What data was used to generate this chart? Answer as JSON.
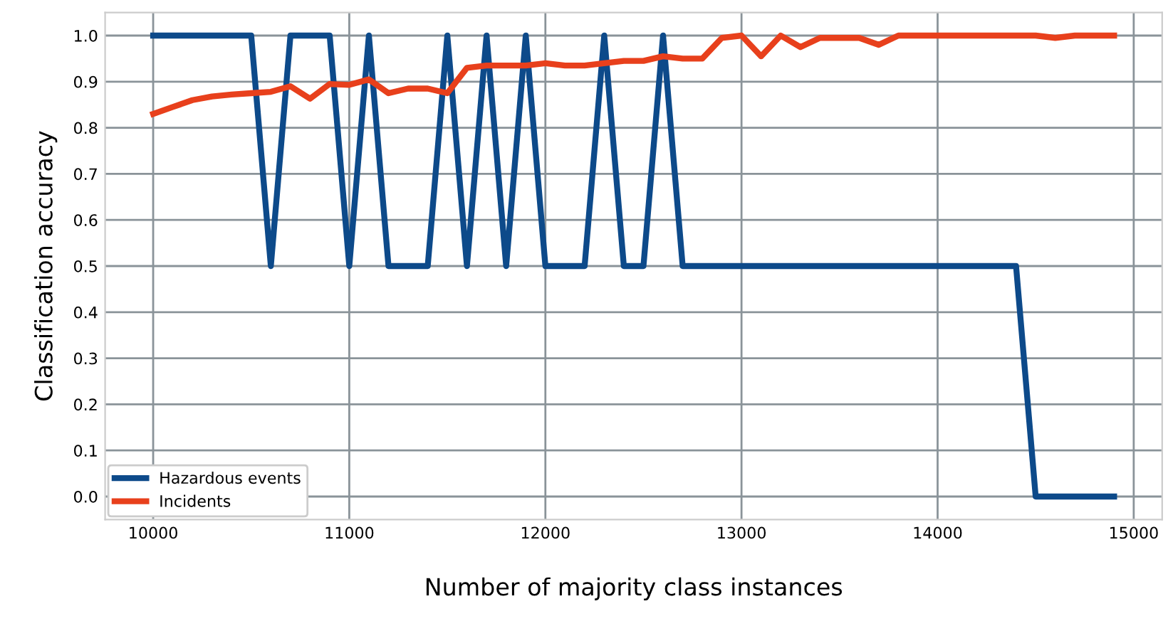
{
  "chart_data": {
    "type": "line",
    "xlabel": "Number of majority class instances",
    "ylabel": "Classification accuracy",
    "x": [
      10000,
      10100,
      10200,
      10300,
      10400,
      10500,
      10600,
      10700,
      10800,
      10900,
      11000,
      11100,
      11200,
      11300,
      11400,
      11500,
      11600,
      11700,
      11800,
      11900,
      12000,
      12100,
      12200,
      12300,
      12400,
      12500,
      12600,
      12700,
      12800,
      12900,
      13000,
      13100,
      13200,
      13300,
      13400,
      13500,
      13600,
      13700,
      13800,
      13900,
      14000,
      14100,
      14200,
      14300,
      14400,
      14500,
      14600,
      14700,
      14800,
      14900
    ],
    "series": [
      {
        "name": "Hazardous events",
        "color": "#0d4a8a",
        "values": [
          1,
          1,
          1,
          1,
          1,
          1,
          0.5,
          1,
          1,
          1,
          0.5,
          1,
          0.5,
          0.5,
          0.5,
          1,
          0.5,
          1,
          0.5,
          1,
          0.5,
          0.5,
          0.5,
          1,
          0.5,
          0.5,
          1,
          0.5,
          0.5,
          0.5,
          0.5,
          0.5,
          0.5,
          0.5,
          0.5,
          0.5,
          0.5,
          0.5,
          0.5,
          0.5,
          0.5,
          0.5,
          0.5,
          0.5,
          0.5,
          0,
          0,
          0,
          0,
          0
        ]
      },
      {
        "name": "Incidents",
        "color": "#e8401c",
        "values": [
          0.83,
          0.845,
          0.86,
          0.868,
          0.872,
          0.875,
          0.878,
          0.89,
          0.863,
          0.895,
          0.893,
          0.905,
          0.875,
          0.885,
          0.885,
          0.875,
          0.93,
          0.935,
          0.935,
          0.935,
          0.94,
          0.935,
          0.935,
          0.94,
          0.945,
          0.945,
          0.955,
          0.95,
          0.95,
          0.995,
          1,
          0.955,
          1,
          0.975,
          0.995,
          0.995,
          0.995,
          0.98,
          1,
          1,
          1,
          1,
          1,
          1,
          1,
          1,
          0.995,
          1,
          1,
          1
        ]
      }
    ],
    "xlim": [
      9755,
      15145
    ],
    "xticks": [
      10000,
      11000,
      12000,
      13000,
      14000,
      15000
    ],
    "ylim": [
      -0.05,
      1.05
    ],
    "yticks": [
      {
        "value": 0,
        "label": "0.0"
      },
      {
        "value": 0.1,
        "label": "0.1"
      },
      {
        "value": 0.2,
        "label": "0.2"
      },
      {
        "value": 0.3,
        "label": "0.3"
      },
      {
        "value": 0.4,
        "label": "0.4"
      },
      {
        "value": 0.5,
        "label": "0.5"
      },
      {
        "value": 0.6,
        "label": "0.6"
      },
      {
        "value": 0.7,
        "label": "0.7"
      },
      {
        "value": 0.8,
        "label": "0.8"
      },
      {
        "value": 0.9,
        "label": "0.9"
      },
      {
        "value": 1,
        "label": "1.0"
      }
    ],
    "grid": true,
    "legend": "bottom left",
    "line_style": "solid"
  }
}
